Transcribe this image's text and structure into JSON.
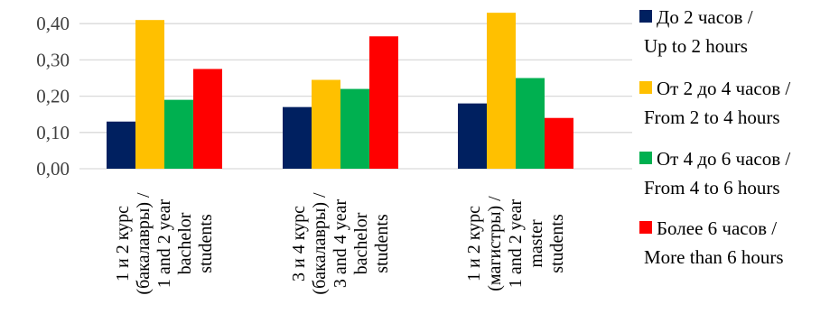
{
  "chart_data": {
    "type": "bar",
    "categories": [
      [
        "1 и 2 курс",
        "(бакалавры) /",
        "1 and 2 year",
        "bachelor",
        "students"
      ],
      [
        "3 и 4 курс",
        "(бакалавры) /",
        "3 and 4 year",
        "bachelor",
        "students"
      ],
      [
        "1 и 2 курс",
        "(магистры) /",
        "1 and 2 year",
        "master",
        "students"
      ]
    ],
    "series": [
      {
        "name": [
          "До 2 часов /",
          "Up to 2 hours"
        ],
        "color": "#002060",
        "values": [
          0.13,
          0.17,
          0.18
        ]
      },
      {
        "name": [
          "От 2 до 4 часов /",
          "From 2 to 4 hours"
        ],
        "color": "#FFC000",
        "values": [
          0.41,
          0.245,
          0.43
        ]
      },
      {
        "name": [
          "От 4 до 6 часов /",
          "From 4 to 6 hours"
        ],
        "color": "#00B050",
        "values": [
          0.19,
          0.22,
          0.25
        ]
      },
      {
        "name": [
          "Более 6 часов /",
          "More than 6 hours"
        ],
        "color": "#FF0000",
        "values": [
          0.275,
          0.365,
          0.14
        ]
      }
    ],
    "yticks": [
      "0,00",
      "0,10",
      "0,20",
      "0,30",
      "0,40"
    ],
    "ylim": [
      0,
      0.45
    ],
    "grid": true,
    "legend_position": "right"
  }
}
